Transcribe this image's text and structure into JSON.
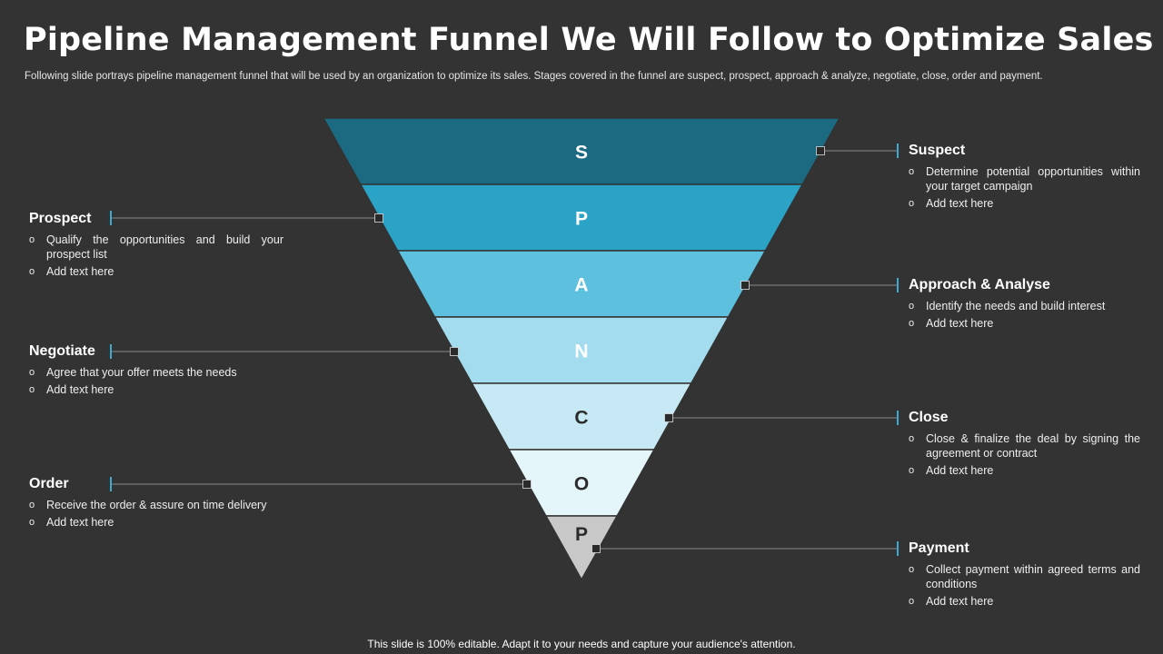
{
  "title": "Pipeline Management Funnel We Will Follow to Optimize Sales",
  "subtitle": "Following slide portrays pipeline management funnel that will be used by an organization to optimize its sales. Stages covered in the funnel are suspect, prospect, approach & analyze, negotiate, close, order and payment.",
  "funnel": {
    "stages": [
      {
        "letter": "S",
        "color": "#1c6a82",
        "text_color": "#ffffff"
      },
      {
        "letter": "P",
        "color": "#2ba3c6",
        "text_color": "#ffffff"
      },
      {
        "letter": "A",
        "color": "#5dc0de",
        "text_color": "#ffffff"
      },
      {
        "letter": "N",
        "color": "#a2dcee",
        "text_color": "#ffffff"
      },
      {
        "letter": "C",
        "color": "#c6e9f5",
        "text_color": "#2b2b2b"
      },
      {
        "letter": "O",
        "color": "#e5f6fb",
        "text_color": "#2b2b2b"
      },
      {
        "letter": "P",
        "color": "#c8c8c8",
        "text_color": "#2b2b2b"
      }
    ]
  },
  "left_items": [
    {
      "title": "Prospect",
      "bullets": [
        "Qualify the opportunities and build your prospect list",
        "Add text here"
      ]
    },
    {
      "title": "Negotiate",
      "bullets": [
        "Agree that your offer meets the needs",
        "Add text here"
      ]
    },
    {
      "title": "Order",
      "bullets": [
        "Receive the order & assure on time delivery",
        "Add text here"
      ]
    }
  ],
  "right_items": [
    {
      "title": "Suspect",
      "bullets": [
        "Determine potential opportunities within your target campaign",
        "Add text here"
      ]
    },
    {
      "title": "Approach & Analyse",
      "bullets": [
        "Identify the needs and build interest",
        "Add text here"
      ]
    },
    {
      "title": "Close",
      "bullets": [
        "Close & finalize the deal by signing the agreement or contract",
        "Add text here"
      ]
    },
    {
      "title": "Payment",
      "bullets": [
        "Collect payment within agreed terms and conditions",
        "Add text here"
      ]
    }
  ],
  "colors": {
    "connector_line": "#8a8a8a",
    "accent_tick": "#3fa9d0",
    "marker_fill": "#2a2a2a"
  },
  "footer": "This slide is 100% editable. Adapt it to your needs and capture your audience's attention."
}
